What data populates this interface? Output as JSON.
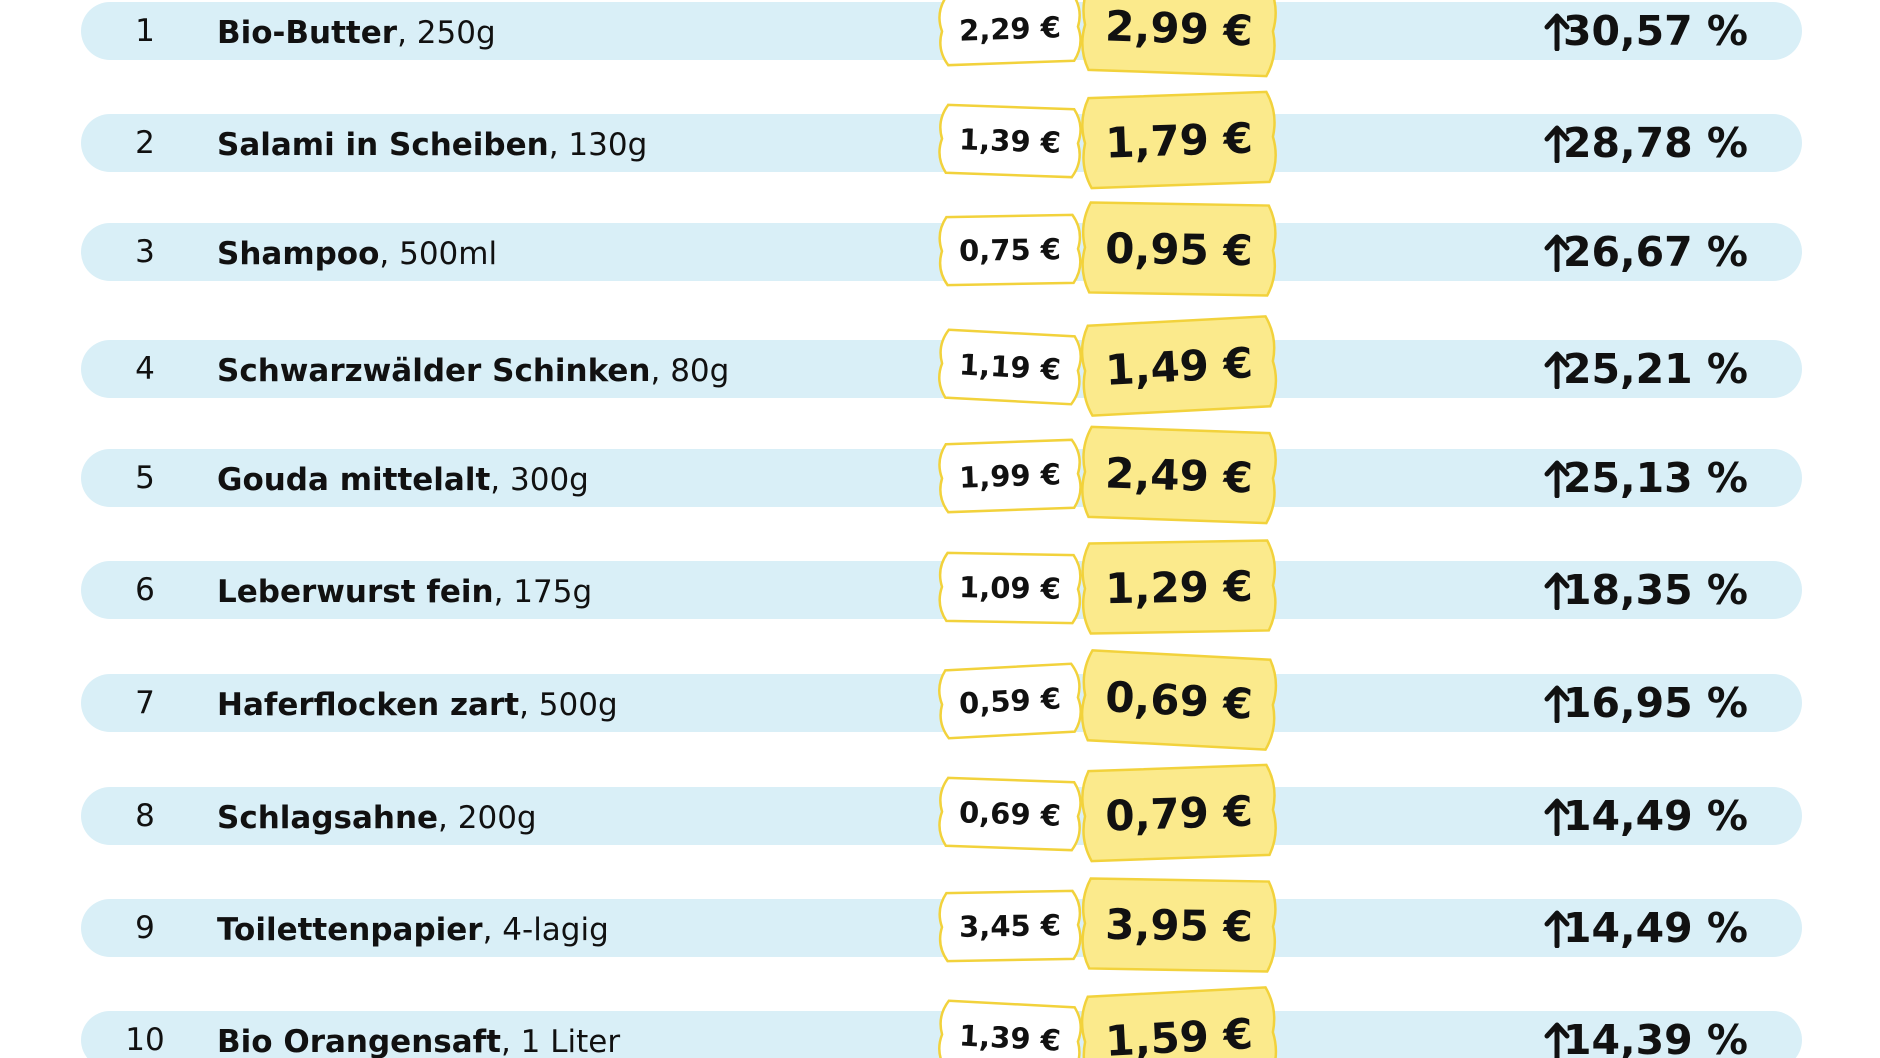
{
  "rows": [
    {
      "rank": "1",
      "name": "Bio-Butter",
      "detail": ", 250g",
      "old_price": "2,29 €",
      "new_price": "2,99 €",
      "change": "30,57 %"
    },
    {
      "rank": "2",
      "name": "Salami in Scheiben",
      "detail": ", 130g",
      "old_price": "1,39 €",
      "new_price": "1,79 €",
      "change": "28,78 %"
    },
    {
      "rank": "3",
      "name": "Shampoo",
      "detail": ", 500ml",
      "old_price": "0,75 €",
      "new_price": "0,95 €",
      "change": "26,67 %"
    },
    {
      "rank": "4",
      "name": "Schwarzwälder Schinken",
      "detail": ", 80g",
      "old_price": "1,19 €",
      "new_price": "1,49 €",
      "change": "25,21 %"
    },
    {
      "rank": "5",
      "name": "Gouda mittelalt",
      "detail": ", 300g",
      "old_price": "1,99 €",
      "new_price": "2,49 €",
      "change": "25,13 %"
    },
    {
      "rank": "6",
      "name": "Leberwurst fein",
      "detail": ", 175g",
      "old_price": "1,09 €",
      "new_price": "1,29 €",
      "change": "18,35 %"
    },
    {
      "rank": "7",
      "name": "Haferflocken zart",
      "detail": ", 500g",
      "old_price": "0,59 €",
      "new_price": "0,69 €",
      "change": "16,95 %"
    },
    {
      "rank": "8",
      "name": "Schlagsahne",
      "detail": ", 200g",
      "old_price": "0,69 €",
      "new_price": "0,79 €",
      "change": "14,49 %"
    },
    {
      "rank": "9",
      "name": "Toilettenpapier",
      "detail": ", 4-lagig",
      "old_price": "3,45 €",
      "new_price": "3,95 €",
      "change": "14,49 %"
    },
    {
      "rank": "10",
      "name": "Bio Orangensaft",
      "detail": ", 1 Liter",
      "old_price": "1,39 €",
      "new_price": "1,59 €",
      "change": "14,39 %"
    }
  ]
}
